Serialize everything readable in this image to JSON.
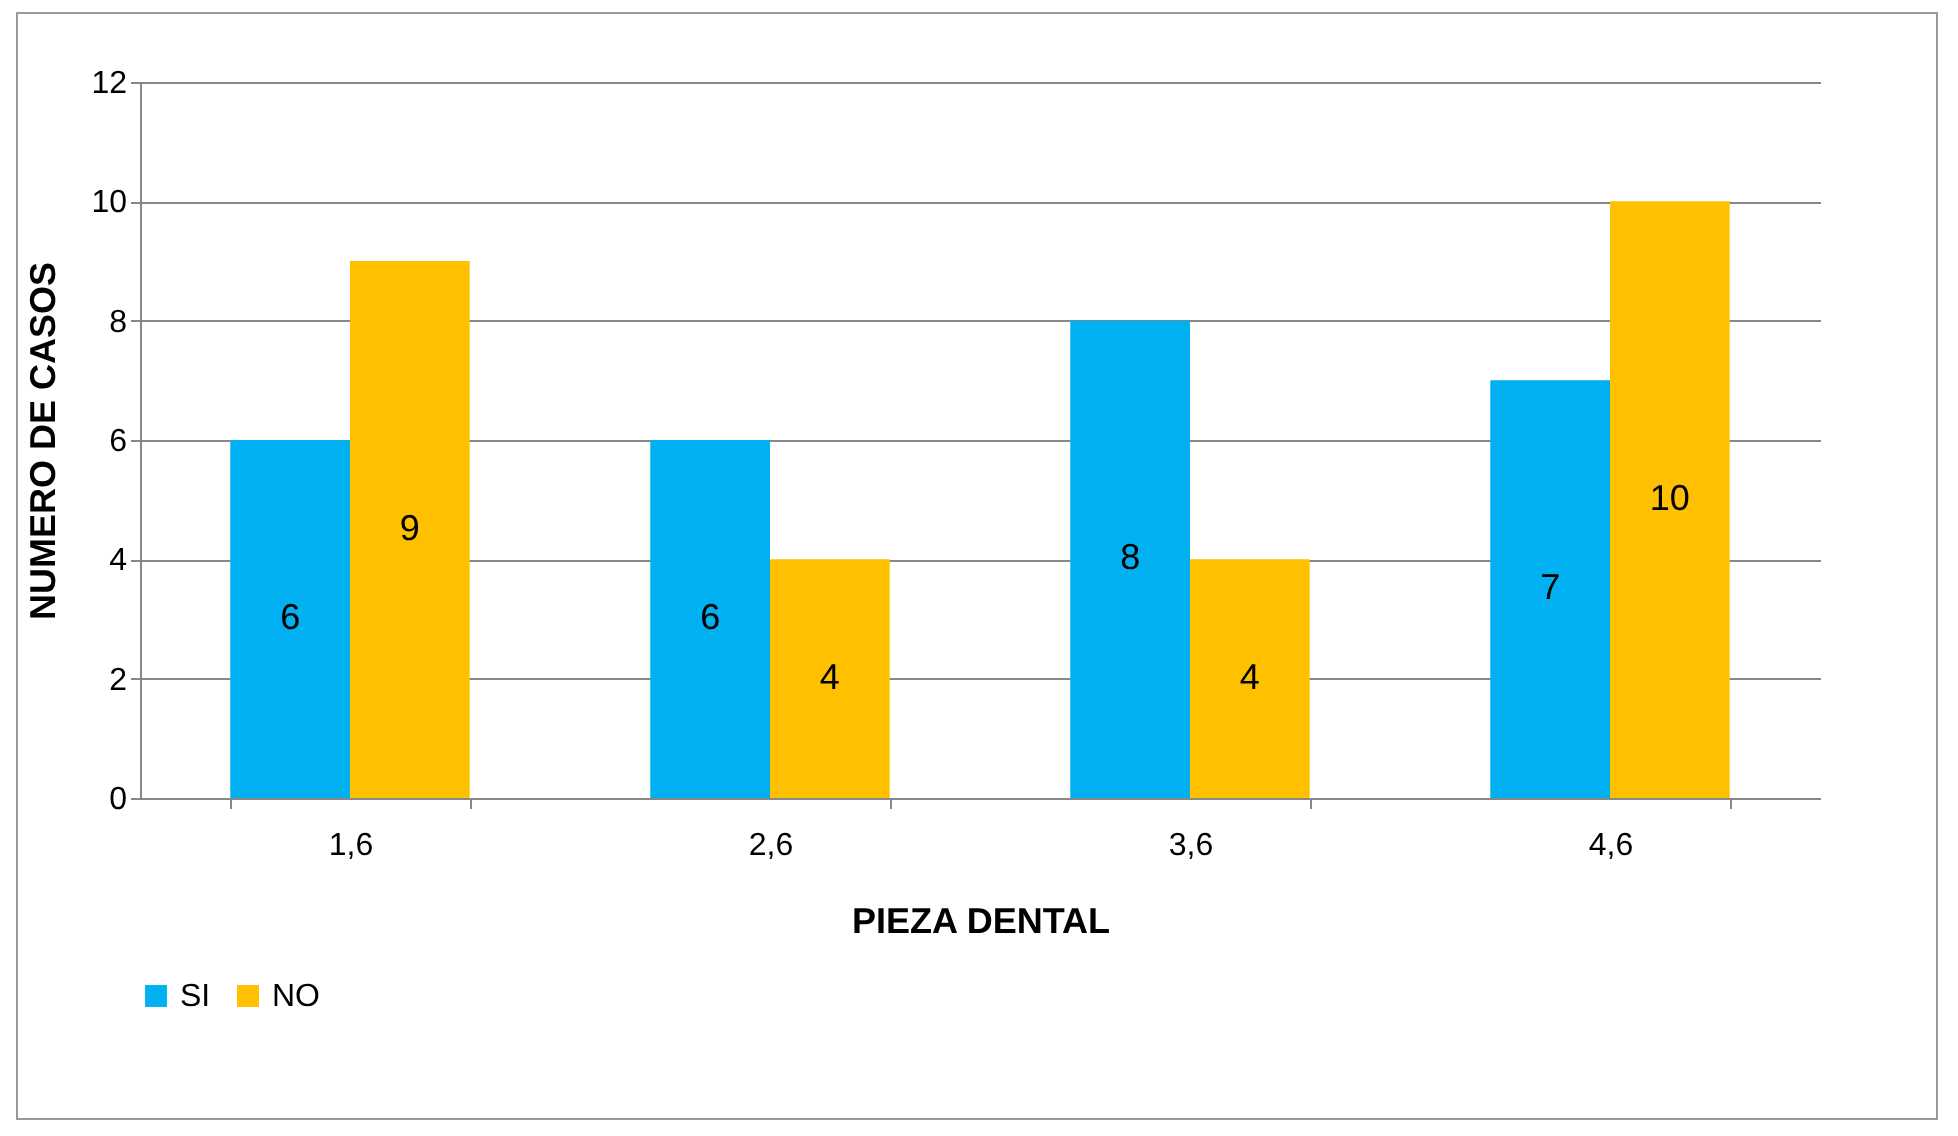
{
  "chart_data": {
    "type": "bar",
    "xlabel": "PIEZA DENTAL",
    "ylabel": "NUMERO DE CASOS",
    "categories": [
      "1,6",
      "2,6",
      "3,6",
      "4,6"
    ],
    "series": [
      {
        "name": "SI",
        "color": "#00b0f0",
        "values": [
          6,
          6,
          8,
          7
        ]
      },
      {
        "name": "NO",
        "color": "#ffc000",
        "values": [
          9,
          4,
          4,
          10
        ]
      }
    ],
    "ylim": [
      0,
      12
    ],
    "yticks": [
      0,
      2,
      4,
      6,
      8,
      10,
      12
    ],
    "grid": "y",
    "legend": "bottom",
    "data_labels": true
  }
}
